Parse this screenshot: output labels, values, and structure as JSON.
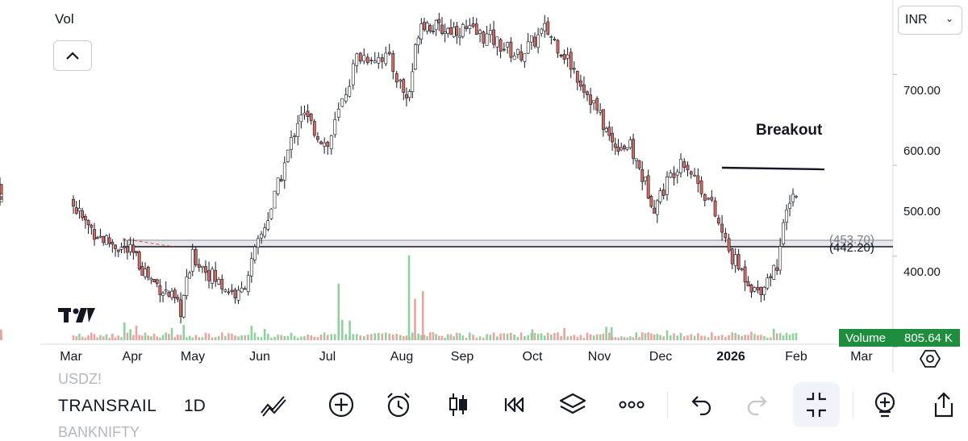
{
  "panel": {
    "vol_label": "Vol",
    "currency": "INR",
    "currency_chevron": "⌄"
  },
  "annotations": {
    "breakout": "Breakout"
  },
  "levels": {
    "upper": "(453.70)",
    "lower": "(442.20)"
  },
  "volume_badge": {
    "label": "Volume",
    "value": "805.64 K",
    "color": "#1e8e3e"
  },
  "toolbar": {
    "symbol_above": "USDZ!",
    "symbol": "TRANSRAIL",
    "symbol_below": "BANKNIFTY",
    "interval": "1D",
    "icons": [
      "drawing-icon",
      "add-icon",
      "alert-icon",
      "candles-icon",
      "replay-icon",
      "layers-icon",
      "more-icon",
      "undo-icon",
      "redo-icon",
      "fullscreen-exit-icon",
      "add-indicator-icon",
      "share-icon"
    ]
  },
  "colors": {
    "up": "#26a69a",
    "down": "#d4695f",
    "candle_body_up": "#ffffff",
    "candle_outline": "#131722",
    "vol_up": "#8fd19e",
    "vol_down": "#e6a5a0"
  },
  "chart_data": {
    "type": "candlestick",
    "title": "",
    "ylabel": "",
    "ylim": [
      372,
      782
    ],
    "y_ticks": [
      400,
      500,
      600,
      700
    ],
    "y_tick_labels": [
      "400.00",
      "500.00",
      "600.00",
      "700.00"
    ],
    "x_labels": [
      "Mar",
      "Apr",
      "May",
      "Jun",
      "Jul",
      "Aug",
      "Sep",
      "Oct",
      "Nov",
      "Dec",
      "2026",
      "Feb",
      "Mar"
    ],
    "key_levels": [
      453.7,
      442.2
    ],
    "breakout_level": 570,
    "close_path": [
      [
        0,
        560
      ],
      [
        0.25,
        535
      ],
      [
        0.5,
        520
      ],
      [
        1.0,
        503
      ],
      [
        1.3,
        475
      ],
      [
        1.6,
        458
      ],
      [
        1.8,
        440
      ],
      [
        2.0,
        500
      ],
      [
        2.4,
        470
      ],
      [
        2.7,
        455
      ],
      [
        3.2,
        560
      ],
      [
        3.6,
        660
      ],
      [
        4.0,
        620
      ],
      [
        4.4,
        720
      ],
      [
        4.8,
        720
      ],
      [
        5.1,
        670
      ],
      [
        5.3,
        760
      ],
      [
        5.6,
        750
      ],
      [
        6.0,
        750
      ],
      [
        6.4,
        740
      ],
      [
        6.8,
        720
      ],
      [
        7.2,
        750
      ],
      [
        7.5,
        720
      ],
      [
        7.9,
        670
      ],
      [
        8.2,
        625
      ],
      [
        8.5,
        620
      ],
      [
        8.9,
        555
      ],
      [
        9.3,
        610
      ],
      [
        9.7,
        560
      ],
      [
        10.0,
        500
      ],
      [
        10.4,
        460
      ],
      [
        10.7,
        490
      ],
      [
        10.9,
        565
      ],
      [
        11.0,
        570
      ]
    ],
    "volume_spikes": [
      [
        4.15,
        0.52
      ],
      [
        5.12,
        0.78
      ],
      [
        5.22,
        0.38
      ],
      [
        5.35,
        0.45
      ],
      [
        4.3,
        0.18
      ],
      [
        7.0,
        0.1
      ],
      [
        8.2,
        0.12
      ]
    ]
  }
}
